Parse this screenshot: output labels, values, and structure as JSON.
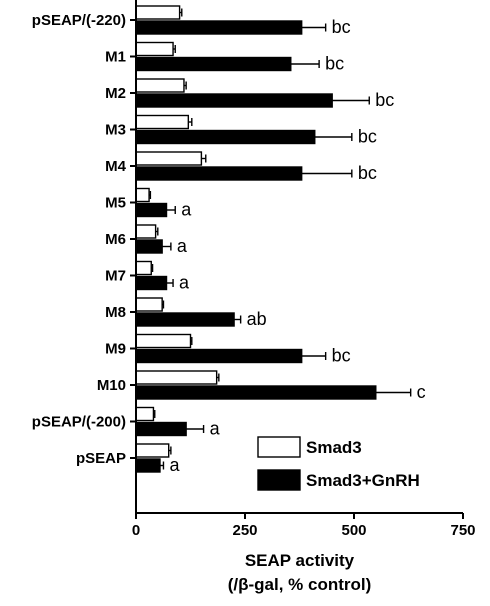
{
  "chart_data": {
    "type": "bar",
    "orientation": "horizontal",
    "categories": [
      "pSEAP/(-220)",
      "M1",
      "M2",
      "M3",
      "M4",
      "M5",
      "M6",
      "M7",
      "M8",
      "M9",
      "M10",
      "pSEAP/(-200)",
      "pSEAP"
    ],
    "series": [
      {
        "name": "Smad3",
        "fill": "#ffffff",
        "values": [
          100,
          85,
          110,
          120,
          150,
          30,
          45,
          35,
          60,
          125,
          185,
          40,
          75
        ],
        "errors": [
          5,
          5,
          5,
          8,
          10,
          3,
          5,
          3,
          3,
          3,
          5,
          3,
          5
        ]
      },
      {
        "name": "Smad3+GnRH",
        "fill": "#000000",
        "values": [
          380,
          355,
          450,
          410,
          380,
          70,
          60,
          70,
          225,
          380,
          550,
          115,
          55
        ],
        "errors": [
          55,
          65,
          85,
          85,
          115,
          20,
          20,
          15,
          15,
          55,
          80,
          40,
          8
        ]
      }
    ],
    "significance_labels": [
      "bc",
      "bc",
      "bc",
      "bc",
      "bc",
      "a",
      "a",
      "a",
      "ab",
      "bc",
      "c",
      "a",
      "a"
    ],
    "xlabel_lines": [
      "SEAP activity",
      "(/β-gal, % control)"
    ],
    "xlim": [
      0,
      750
    ],
    "xticks": [
      0,
      250,
      500,
      750
    ],
    "legend_position": "bottom-right",
    "colors": {
      "axis": "#000000",
      "bar_outline": "#000000"
    }
  }
}
